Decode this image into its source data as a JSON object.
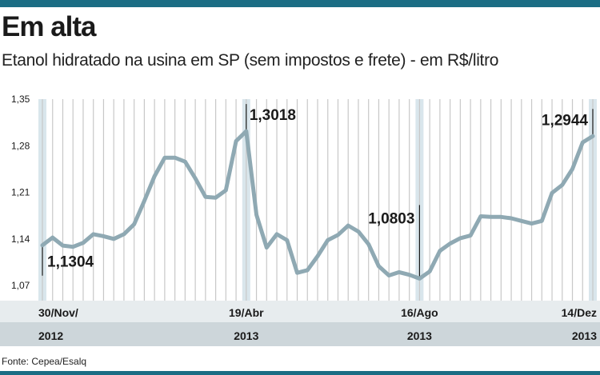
{
  "header": {
    "title": "Em alta",
    "subtitle": "Etanol hidratado na usina em SP (sem impostos e frete) - em R$/litro"
  },
  "footer": {
    "source": "Fonte: Cepea/Esalq"
  },
  "colors": {
    "line": "#8fa9b3",
    "grid": "#c8c8c8",
    "highlight": "#d9e6ec",
    "band_dark": "#cdd6da",
    "band_light": "#e7ecee",
    "brand": "#1b6d84"
  },
  "chart_data": {
    "type": "line",
    "title": "Em alta",
    "subtitle": "Etanol hidratado na usina em SP (sem impostos e frete) - em R$/litro",
    "ylim": [
      1.07,
      1.35
    ],
    "yticks": [
      "1,35",
      "1,28",
      "1,21",
      "1,14",
      "1,07"
    ],
    "ytick_values": [
      1.35,
      1.28,
      1.21,
      1.14,
      1.07
    ],
    "grid": true,
    "x_labels": [
      {
        "index": 0,
        "date": "30/Nov/",
        "year": "2012"
      },
      {
        "index": 20,
        "date": "19/Abr",
        "year": "2013"
      },
      {
        "index": 37,
        "date": "16/Ago",
        "year": "2013"
      },
      {
        "index": 54,
        "date": "14/Dez",
        "year": "2013"
      }
    ],
    "highlight_indices": [
      0,
      20,
      37,
      54
    ],
    "annotations": [
      {
        "index": 0,
        "label": "1,1304"
      },
      {
        "index": 20,
        "label": "1,3018"
      },
      {
        "index": 37,
        "label": "1,0803"
      },
      {
        "index": 54,
        "label": "1,2944"
      }
    ],
    "series": [
      {
        "values": [
          1.1304,
          1.142,
          1.13,
          1.128,
          1.134,
          1.147,
          1.144,
          1.14,
          1.147,
          1.162,
          1.197,
          1.234,
          1.262,
          1.262,
          1.256,
          1.231,
          1.203,
          1.202,
          1.213,
          1.287,
          1.3018,
          1.176,
          1.127,
          1.147,
          1.138,
          1.089,
          1.093,
          1.114,
          1.138,
          1.146,
          1.16,
          1.151,
          1.132,
          1.099,
          1.085,
          1.09,
          1.086,
          1.0803,
          1.091,
          1.122,
          1.133,
          1.141,
          1.145,
          1.174,
          1.173,
          1.173,
          1.171,
          1.167,
          1.163,
          1.167,
          1.209,
          1.221,
          1.245,
          1.285,
          1.2944
        ]
      }
    ]
  }
}
